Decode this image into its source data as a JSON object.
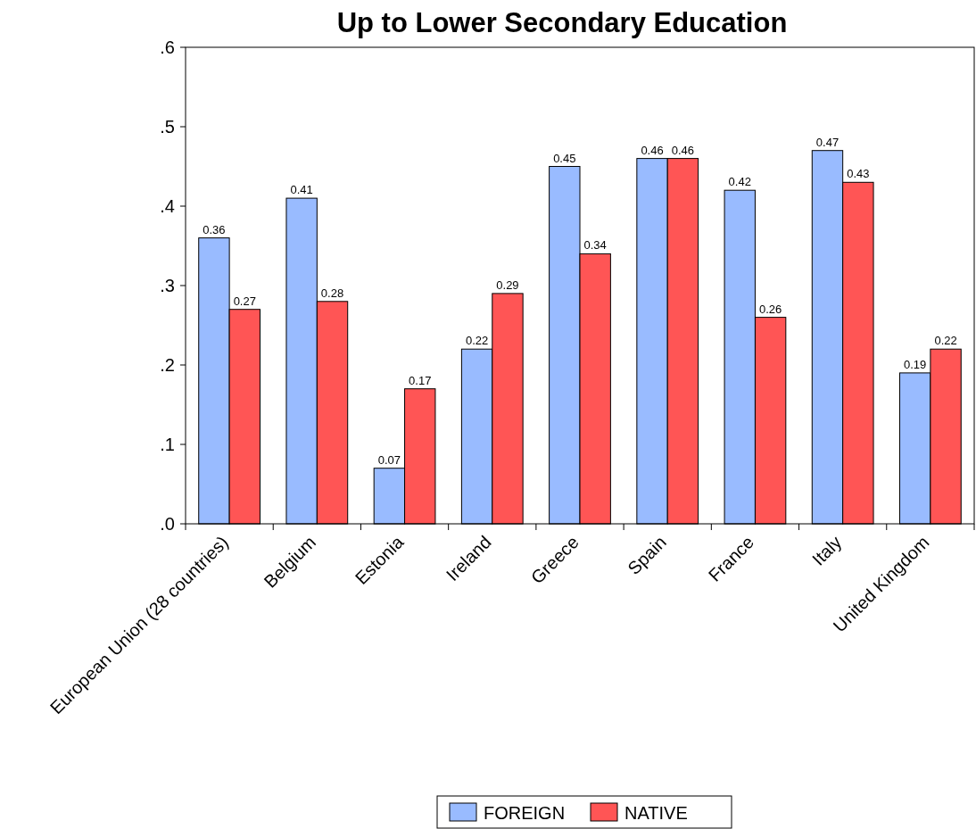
{
  "chart_data": {
    "type": "bar",
    "title": "Up to Lower Secondary Education",
    "categories": [
      "European Union (28 countries)",
      "Belgium",
      "Estonia",
      "Ireland",
      "Greece",
      "Spain",
      "France",
      "Italy",
      "United Kingdom"
    ],
    "series": [
      {
        "name": "FOREIGN",
        "color": "#99bbff",
        "values": [
          0.36,
          0.41,
          0.07,
          0.22,
          0.45,
          0.46,
          0.42,
          0.47,
          0.19
        ]
      },
      {
        "name": "NATIVE",
        "color": "#ff5555",
        "values": [
          0.27,
          0.28,
          0.17,
          0.29,
          0.34,
          0.46,
          0.26,
          0.43,
          0.22
        ]
      }
    ],
    "ylim": [
      0,
      0.6
    ],
    "yticks": [
      {
        "value": 0,
        "label": ".0"
      },
      {
        "value": 0.1,
        "label": ".1"
      },
      {
        "value": 0.2,
        "label": ".2"
      },
      {
        "value": 0.3,
        "label": ".3"
      },
      {
        "value": 0.4,
        "label": ".4"
      },
      {
        "value": 0.5,
        "label": ".5"
      },
      {
        "value": 0.6,
        "label": ".6"
      }
    ],
    "data_labels": true,
    "legend": "bottom"
  }
}
